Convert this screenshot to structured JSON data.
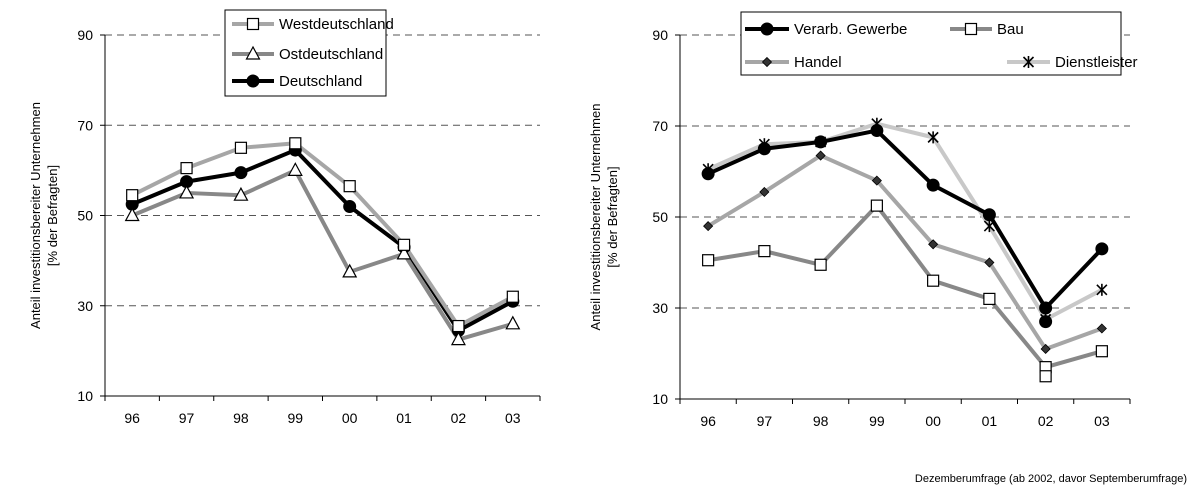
{
  "chart_data": [
    {
      "type": "line",
      "categories": [
        "96",
        "97",
        "98",
        "99",
        "00",
        "01",
        "02",
        "03"
      ],
      "ylabel_line1": "Anteil investitionsbereiter Unternehmen",
      "ylabel_line2": "[% der Befragten]",
      "yticks": [
        "10",
        "30",
        "50",
        "70",
        "90"
      ],
      "ylim": [
        10,
        90
      ],
      "grid": true,
      "legend_position": "top-right",
      "series": [
        {
          "name": "Westdeutschland",
          "marker": "square",
          "color": "#a6a6a6",
          "values": [
            54.5,
            60.5,
            65,
            66,
            56.5,
            43.5,
            25.5,
            32
          ]
        },
        {
          "name": "Ostdeutschland",
          "marker": "triangle",
          "color": "#888888",
          "values": [
            50,
            55,
            54.5,
            60,
            37.5,
            41.5,
            22.5,
            26
          ]
        },
        {
          "name": "Deutschland",
          "marker": "circle",
          "color": "#000000",
          "values": [
            52.5,
            57.5,
            59.5,
            64.5,
            52,
            43,
            24.5,
            31
          ]
        }
      ]
    },
    {
      "type": "line",
      "categories": [
        "96",
        "97",
        "98",
        "99",
        "00",
        "01",
        "02",
        "03"
      ],
      "ylabel_line1": "Anteil investitionsbereiter Unternehmen",
      "ylabel_line2": "[% der Befragten]",
      "yticks": [
        "10",
        "30",
        "50",
        "70",
        "90"
      ],
      "ylim": [
        10,
        90
      ],
      "grid": true,
      "legend_position": "top",
      "series": [
        {
          "name": "Verarb. Gewerbe",
          "marker": "circle",
          "color": "#000000",
          "values": [
            59.5,
            65,
            66.5,
            69,
            57,
            50.5,
            30,
            43
          ]
        },
        {
          "name": "Bau",
          "marker": "square",
          "color": "#888888",
          "values": [
            40.5,
            42.5,
            39.5,
            52.5,
            36,
            32,
            17,
            20.5
          ]
        },
        {
          "name": "Handel",
          "marker": "diamond",
          "color": "#a6a6a6",
          "values": [
            48,
            55.5,
            63.5,
            58,
            44,
            40,
            21,
            25.5
          ]
        },
        {
          "name": "Dienstleister",
          "marker": "asterisk",
          "color": "#c8c8c8",
          "values": [
            60.5,
            66,
            66.5,
            70.5,
            67.5,
            48,
            27.5,
            34
          ]
        }
      ],
      "extra_markers": [
        {
          "category": "02",
          "value": 15,
          "marker": "square"
        },
        {
          "category": "02",
          "value": 27,
          "marker": "circle"
        }
      ]
    }
  ],
  "footnote": "Dezemberumfrage (ab 2002, davor Septemberumfrage)"
}
